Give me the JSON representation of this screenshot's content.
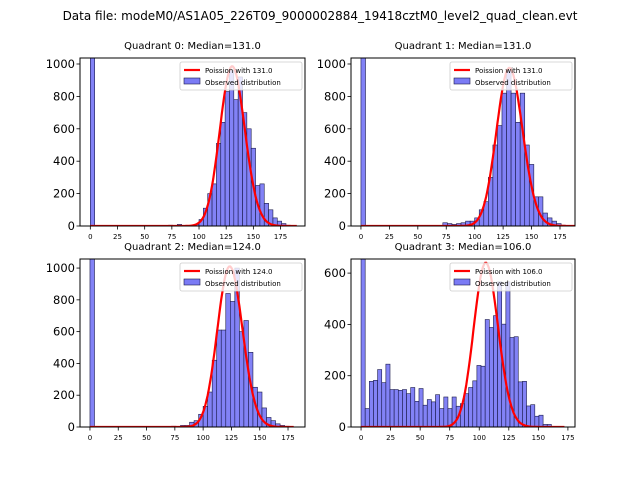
{
  "figure_title": "Data file: modeM0/AS1A05_226T09_9000002884_19418cztM0_level2_quad_clean.evt",
  "colors": {
    "bar_fill": "#7b7bf5",
    "bar_edge": "#1a1a4a",
    "curve": "#ff0000"
  },
  "chart_data": [
    {
      "type": "bar",
      "title": "Quadrant 0: Median=131.0",
      "legend": [
        "Poission with 131.0",
        "Observed distribution"
      ],
      "legend_position": "top-right",
      "xlim": [
        -9.5,
        197.5
      ],
      "ylim": [
        0,
        1037
      ],
      "xticks": [
        0,
        25,
        50,
        75,
        100,
        125,
        150,
        175
      ],
      "yticks": [
        0,
        200,
        400,
        600,
        800,
        1000
      ],
      "bin_width": 4,
      "bins": [
        [
          0,
          3000
        ],
        [
          72,
          5
        ],
        [
          80,
          10
        ],
        [
          96,
          10
        ],
        [
          100,
          40
        ],
        [
          104,
          110
        ],
        [
          108,
          200
        ],
        [
          112,
          260
        ],
        [
          116,
          510
        ],
        [
          120,
          640
        ],
        [
          124,
          830
        ],
        [
          128,
          960
        ],
        [
          132,
          780
        ],
        [
          136,
          920
        ],
        [
          140,
          700
        ],
        [
          144,
          600
        ],
        [
          148,
          480
        ],
        [
          152,
          250
        ],
        [
          156,
          260
        ],
        [
          160,
          140
        ],
        [
          164,
          100
        ],
        [
          168,
          50
        ],
        [
          172,
          30
        ],
        [
          176,
          15
        ],
        [
          180,
          5
        ]
      ],
      "poisson": {
        "lambda": 131.0,
        "peak": 985,
        "x_range": [
          0,
          190
        ]
      }
    },
    {
      "type": "bar",
      "title": "Quadrant 1: Median=131.0",
      "legend": [
        "Poission with 131.0",
        "Observed distribution"
      ],
      "legend_position": "top-right",
      "xlim": [
        -8.75,
        188.2
      ],
      "ylim": [
        0,
        1037
      ],
      "xticks": [
        0,
        25,
        50,
        75,
        100,
        125,
        150,
        175
      ],
      "yticks": [
        0,
        200,
        400,
        600,
        800,
        1000
      ],
      "bin_width": 4,
      "bins": [
        [
          0,
          3000
        ],
        [
          72,
          20
        ],
        [
          76,
          15
        ],
        [
          80,
          10
        ],
        [
          84,
          15
        ],
        [
          88,
          20
        ],
        [
          92,
          30
        ],
        [
          96,
          30
        ],
        [
          100,
          50
        ],
        [
          104,
          100
        ],
        [
          108,
          150
        ],
        [
          112,
          300
        ],
        [
          116,
          500
        ],
        [
          120,
          620
        ],
        [
          124,
          820
        ],
        [
          128,
          960
        ],
        [
          132,
          820
        ],
        [
          136,
          640
        ],
        [
          140,
          820
        ],
        [
          144,
          500
        ],
        [
          148,
          380
        ],
        [
          152,
          180
        ],
        [
          156,
          180
        ],
        [
          160,
          80
        ],
        [
          164,
          50
        ],
        [
          168,
          30
        ],
        [
          172,
          15
        ],
        [
          176,
          5
        ]
      ],
      "poisson": {
        "lambda": 131.0,
        "peak": 975,
        "x_range": [
          0,
          188
        ]
      }
    },
    {
      "type": "bar",
      "title": "Quadrant 2: Median=124.0",
      "legend": [
        "Poission with 124.0",
        "Observed distribution"
      ],
      "legend_position": "top-right",
      "xlim": [
        -8.8,
        190
      ],
      "ylim": [
        0,
        1057
      ],
      "xticks": [
        0,
        25,
        50,
        75,
        100,
        125,
        150,
        175
      ],
      "yticks": [
        0,
        200,
        400,
        600,
        800,
        1000
      ],
      "bin_width": 4,
      "bins": [
        [
          0,
          3000
        ],
        [
          72,
          5
        ],
        [
          80,
          10
        ],
        [
          84,
          10
        ],
        [
          88,
          30
        ],
        [
          92,
          40
        ],
        [
          96,
          80
        ],
        [
          100,
          130
        ],
        [
          104,
          220
        ],
        [
          108,
          420
        ],
        [
          112,
          610
        ],
        [
          116,
          610
        ],
        [
          120,
          840
        ],
        [
          124,
          790
        ],
        [
          128,
          1000
        ],
        [
          132,
          600
        ],
        [
          136,
          670
        ],
        [
          140,
          470
        ],
        [
          144,
          250
        ],
        [
          148,
          220
        ],
        [
          152,
          120
        ],
        [
          156,
          60
        ],
        [
          160,
          40
        ],
        [
          164,
          20
        ],
        [
          168,
          10
        ],
        [
          172,
          5
        ]
      ],
      "poisson": {
        "lambda": 124.0,
        "peak": 1010,
        "x_range": [
          0,
          180
        ]
      }
    },
    {
      "type": "bar",
      "title": "Quadrant 3: Median=106.0",
      "legend": [
        "Poission with 106.0",
        "Observed distribution"
      ],
      "legend_position": "top-right",
      "xlim": [
        -8.5,
        181
      ],
      "ylim": [
        0,
        655
      ],
      "xticks": [
        0,
        25,
        50,
        75,
        100,
        125,
        150,
        175
      ],
      "yticks": [
        0,
        200,
        400,
        600
      ],
      "bin_width": 3.5,
      "bins": [
        [
          0,
          2000
        ],
        [
          3.5,
          72
        ],
        [
          7,
          178
        ],
        [
          10.5,
          182
        ],
        [
          14,
          224
        ],
        [
          17.5,
          173
        ],
        [
          21,
          245
        ],
        [
          24.5,
          146
        ],
        [
          28,
          146
        ],
        [
          31.5,
          143
        ],
        [
          35,
          146
        ],
        [
          38.5,
          130
        ],
        [
          42,
          154
        ],
        [
          45.5,
          100
        ],
        [
          49,
          150
        ],
        [
          52.5,
          85
        ],
        [
          56,
          107
        ],
        [
          59.5,
          98
        ],
        [
          63,
          126
        ],
        [
          66.5,
          72
        ],
        [
          70,
          117
        ],
        [
          73.5,
          72
        ],
        [
          77,
          117
        ],
        [
          80.5,
          81
        ],
        [
          84,
          91
        ],
        [
          87.5,
          130
        ],
        [
          91,
          154
        ],
        [
          94.5,
          180
        ],
        [
          98,
          240
        ],
        [
          101.5,
          237
        ],
        [
          105,
          419
        ],
        [
          108.5,
          388
        ],
        [
          112,
          434
        ],
        [
          115.5,
          566
        ],
        [
          119,
          401
        ],
        [
          122.5,
          566
        ],
        [
          126,
          349
        ],
        [
          129.5,
          352
        ],
        [
          133,
          176
        ],
        [
          136.5,
          178
        ],
        [
          140,
          82
        ],
        [
          143.5,
          87
        ],
        [
          147,
          42
        ],
        [
          150.5,
          46
        ],
        [
          154,
          10
        ],
        [
          157.5,
          10
        ]
      ],
      "poisson": {
        "lambda": 106.0,
        "peak": 640,
        "x_range": [
          0,
          172
        ]
      }
    }
  ]
}
